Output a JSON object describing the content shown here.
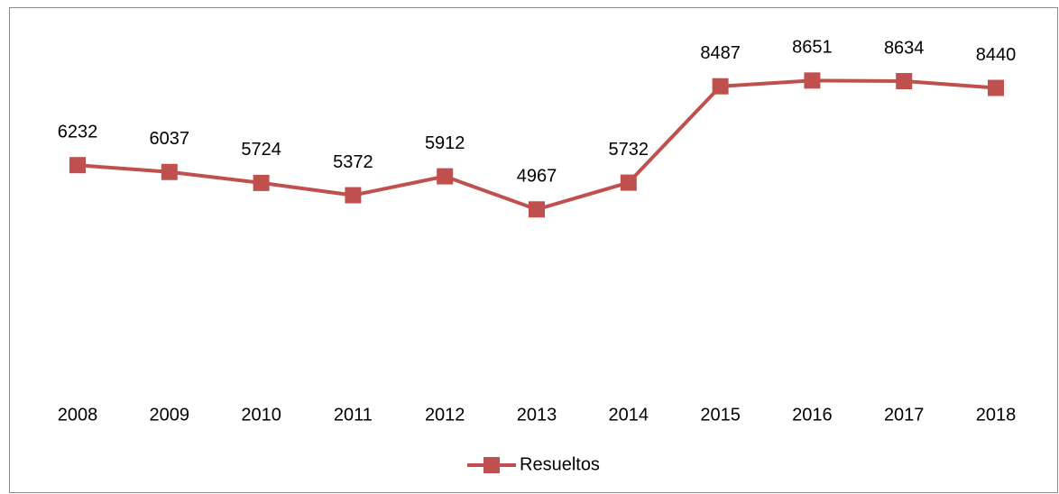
{
  "chart_data": {
    "type": "line",
    "categories": [
      "2008",
      "2009",
      "2010",
      "2011",
      "2012",
      "2013",
      "2014",
      "2015",
      "2016",
      "2017",
      "2018"
    ],
    "series": [
      {
        "name": "Resueltos",
        "color": "#c0504d",
        "values": [
          6232,
          6037,
          5724,
          5372,
          5912,
          4967,
          5732,
          8487,
          8651,
          8634,
          8440
        ]
      }
    ],
    "ylim": [
      0,
      10000
    ],
    "legend": "bottom"
  }
}
